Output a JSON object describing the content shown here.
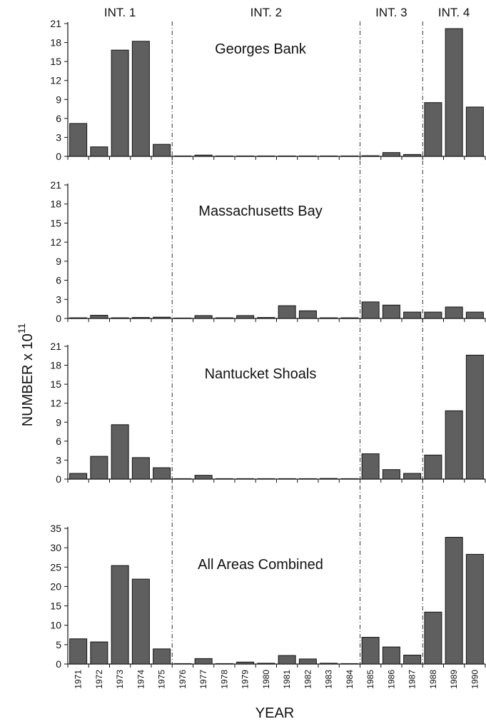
{
  "chart_data": [
    {
      "type": "bar",
      "title": "Georges Bank",
      "ylim": [
        0,
        21
      ],
      "yticks": [
        "0",
        "3",
        "6",
        "9",
        "12",
        "15",
        "18",
        "21"
      ],
      "categories": [
        "1971",
        "1972",
        "1973",
        "1974",
        "1975",
        "1976",
        "1977",
        "1978",
        "1979",
        "1980",
        "1981",
        "1982",
        "1983",
        "1984",
        "1985",
        "1986",
        "1987",
        "1988",
        "1989",
        "1990"
      ],
      "values": [
        5.2,
        1.5,
        16.8,
        18.2,
        1.9,
        0.05,
        0.2,
        0.05,
        0.05,
        0.0,
        0.0,
        0.0,
        0.0,
        0.0,
        0.1,
        0.6,
        0.3,
        8.5,
        20.2,
        7.8
      ]
    },
    {
      "type": "bar",
      "title": "Massachusetts Bay",
      "ylim": [
        0,
        21
      ],
      "yticks": [
        "0",
        "3",
        "6",
        "9",
        "12",
        "15",
        "18",
        "21"
      ],
      "categories": [
        "1971",
        "1972",
        "1973",
        "1974",
        "1975",
        "1976",
        "1977",
        "1978",
        "1979",
        "1980",
        "1981",
        "1982",
        "1983",
        "1984",
        "1985",
        "1986",
        "1987",
        "1988",
        "1989",
        "1990"
      ],
      "values": [
        0.1,
        0.5,
        0.1,
        0.15,
        0.2,
        0.0,
        0.45,
        0.1,
        0.45,
        0.15,
        2.0,
        1.2,
        0.1,
        0.1,
        2.6,
        2.1,
        1.0,
        1.0,
        1.8,
        1.0
      ]
    },
    {
      "type": "bar",
      "title": "Nantucket Shoals",
      "ylim": [
        0,
        21
      ],
      "yticks": [
        "0",
        "3",
        "6",
        "9",
        "12",
        "15",
        "18",
        "21"
      ],
      "categories": [
        "1971",
        "1972",
        "1973",
        "1974",
        "1975",
        "1976",
        "1977",
        "1978",
        "1979",
        "1980",
        "1981",
        "1982",
        "1983",
        "1984",
        "1985",
        "1986",
        "1987",
        "1988",
        "1989",
        "1990"
      ],
      "values": [
        0.9,
        3.6,
        8.6,
        3.4,
        1.8,
        0.0,
        0.6,
        0.0,
        0.0,
        0.0,
        0.05,
        0.05,
        0.1,
        0.0,
        4.0,
        1.5,
        0.9,
        3.8,
        10.8,
        19.6
      ]
    },
    {
      "type": "bar",
      "title": "All Areas Combined",
      "ylim": [
        0,
        35
      ],
      "yticks": [
        "0",
        "5",
        "10",
        "15",
        "20",
        "25",
        "30",
        "35"
      ],
      "categories": [
        "1971",
        "1972",
        "1973",
        "1974",
        "1975",
        "1976",
        "1977",
        "1978",
        "1979",
        "1980",
        "1981",
        "1982",
        "1983",
        "1984",
        "1985",
        "1986",
        "1987",
        "1988",
        "1989",
        "1990"
      ],
      "values": [
        6.5,
        5.7,
        25.4,
        21.9,
        3.9,
        0.1,
        1.4,
        0.1,
        0.5,
        0.2,
        2.2,
        1.3,
        0.2,
        0.1,
        6.9,
        4.4,
        2.3,
        13.4,
        32.7,
        28.3
      ]
    }
  ],
  "figure": {
    "xlabel": "YEAR",
    "ylabel_main": "NUMBER x 10",
    "ylabel_exp": "11",
    "intervals": [
      {
        "label": "INT. 1",
        "start_index": 0,
        "end_index": 4
      },
      {
        "label": "INT. 2",
        "start_index": 5,
        "end_index": 13
      },
      {
        "label": "INT. 3",
        "start_index": 14,
        "end_index": 16
      },
      {
        "label": "INT. 4",
        "start_index": 17,
        "end_index": 19
      }
    ],
    "bar_color": "#5f5f5f"
  }
}
